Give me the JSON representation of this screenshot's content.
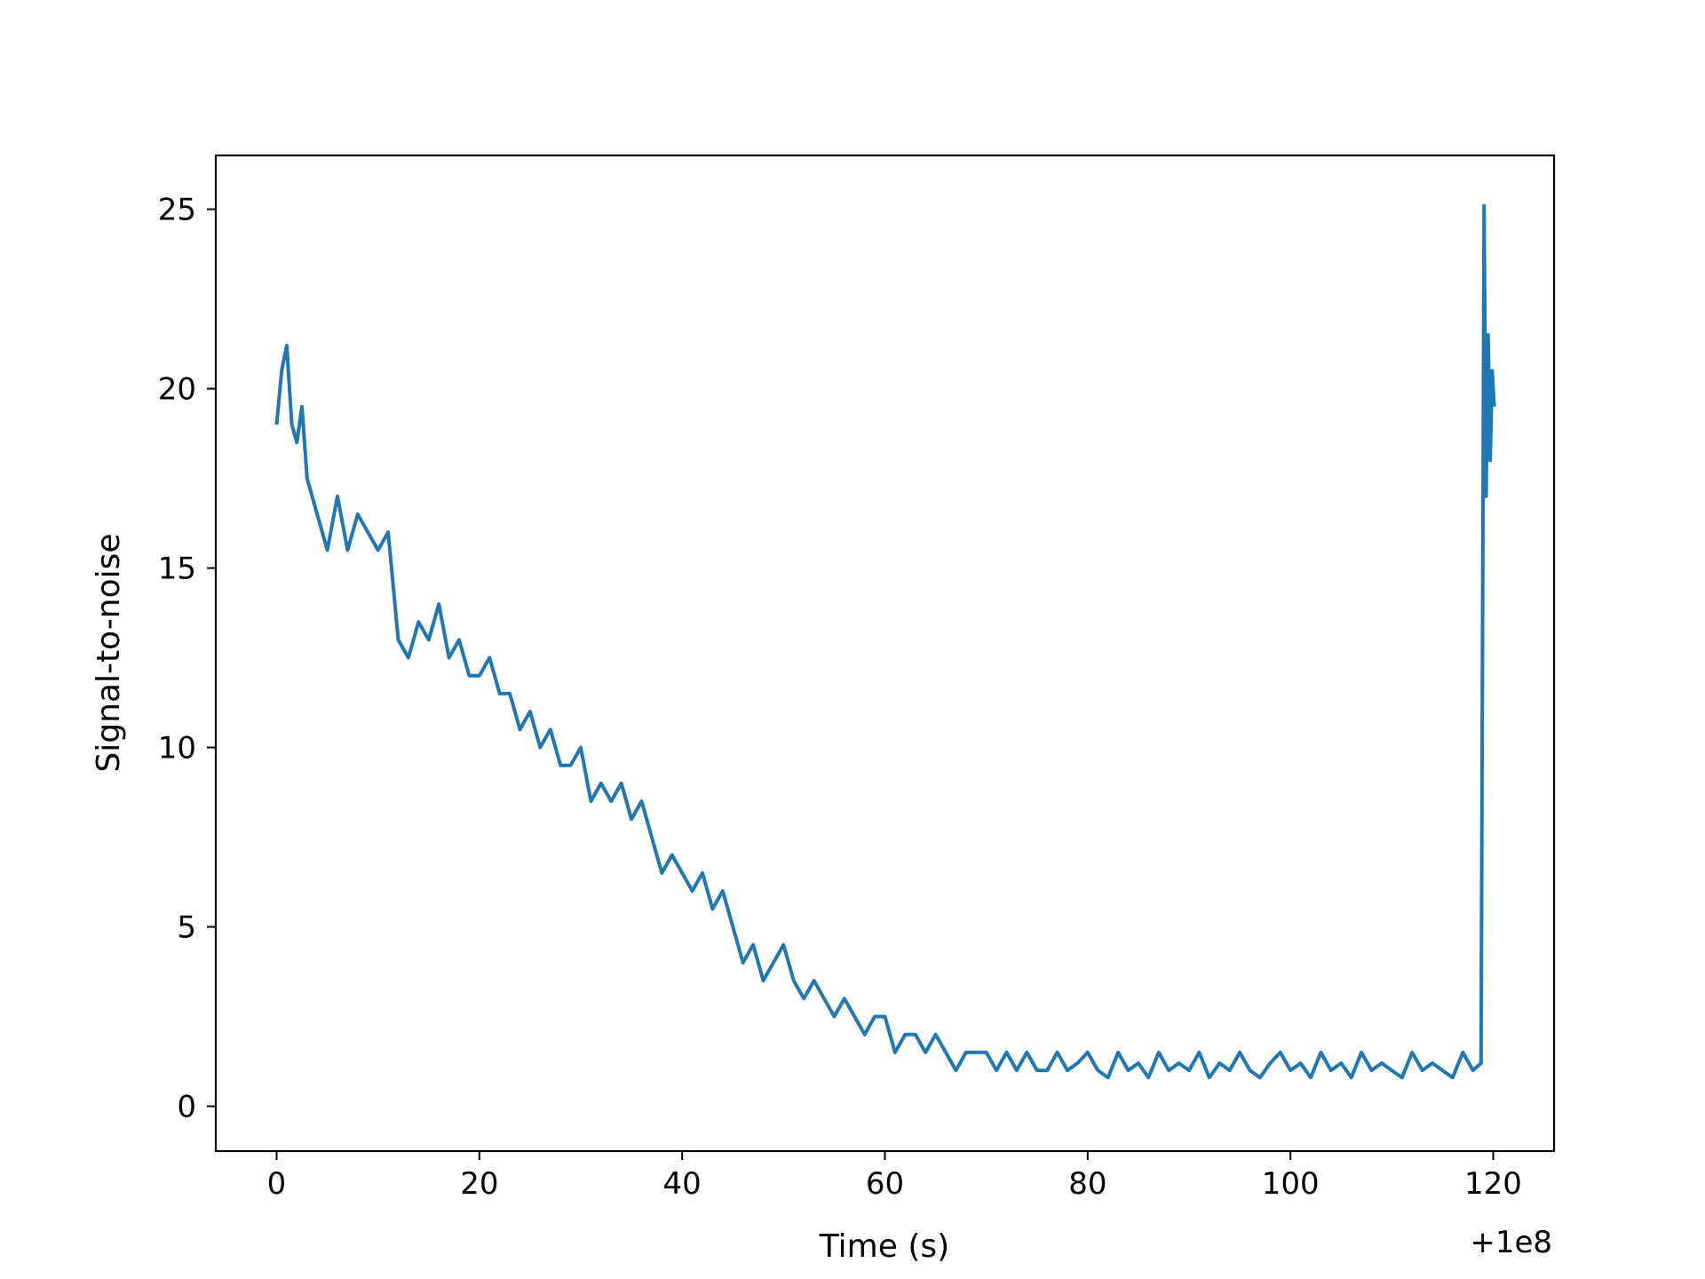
{
  "chart_data": {
    "type": "line",
    "title": "",
    "xlabel": "Time (s)",
    "ylabel": "Signal-to-noise",
    "x_offset_label": "+1e8",
    "xlim": [
      -6.0,
      126.0
    ],
    "ylim": [
      -1.25,
      26.5
    ],
    "x_ticks": [
      0,
      20,
      40,
      60,
      80,
      100,
      120
    ],
    "y_ticks": [
      0,
      5,
      10,
      15,
      20,
      25
    ],
    "grid": false,
    "legend": "none",
    "line_color": "#1f77b4",
    "series": [
      {
        "x": [
          0,
          0.5,
          1,
          1.5,
          2,
          2.5,
          3,
          4,
          5,
          6,
          7,
          8,
          9,
          10,
          11,
          12,
          13,
          14,
          15,
          16,
          17,
          18,
          19,
          20,
          21,
          22,
          23,
          24,
          25,
          26,
          27,
          28,
          29,
          30,
          31,
          32,
          33,
          34,
          35,
          36,
          37,
          38,
          39,
          40,
          41,
          42,
          43,
          44,
          45,
          46,
          47,
          48,
          49,
          50,
          51,
          52,
          53,
          54,
          55,
          56,
          57,
          58,
          59,
          60,
          61,
          62,
          63,
          64,
          65,
          66,
          67,
          68,
          69,
          70,
          71,
          72,
          73,
          74,
          75,
          76,
          77,
          78,
          79,
          80,
          81,
          82,
          83,
          84,
          85,
          86,
          87,
          88,
          89,
          90,
          91,
          92,
          93,
          94,
          95,
          96,
          97,
          98,
          99,
          100,
          101,
          102,
          103,
          104,
          105,
          106,
          107,
          108,
          109,
          110,
          111,
          112,
          113,
          114,
          115,
          116,
          117,
          118,
          118.8,
          119.1,
          119.3,
          119.5,
          119.7,
          119.9,
          120.1
        ],
        "y": [
          19.0,
          20.5,
          21.2,
          19.0,
          18.5,
          19.5,
          17.5,
          16.5,
          15.5,
          17.0,
          15.5,
          16.5,
          16.0,
          15.5,
          16.0,
          13.0,
          12.5,
          13.5,
          13.0,
          14.0,
          12.5,
          13.0,
          12.0,
          12.0,
          12.5,
          11.5,
          11.5,
          10.5,
          11.0,
          10.0,
          10.5,
          9.5,
          9.5,
          10.0,
          8.5,
          9.0,
          8.5,
          9.0,
          8.0,
          8.5,
          7.5,
          6.5,
          7.0,
          6.5,
          6.0,
          6.5,
          5.5,
          6.0,
          5.0,
          4.0,
          4.5,
          3.5,
          4.0,
          4.5,
          3.5,
          3.0,
          3.5,
          3.0,
          2.5,
          3.0,
          2.5,
          2.0,
          2.5,
          2.5,
          1.5,
          2.0,
          2.0,
          1.5,
          2.0,
          1.5,
          1.0,
          1.5,
          1.5,
          1.5,
          1.0,
          1.5,
          1.0,
          1.5,
          1.0,
          1.0,
          1.5,
          1.0,
          1.2,
          1.5,
          1.0,
          0.8,
          1.5,
          1.0,
          1.2,
          0.8,
          1.5,
          1.0,
          1.2,
          1.0,
          1.5,
          0.8,
          1.2,
          1.0,
          1.5,
          1.0,
          0.8,
          1.2,
          1.5,
          1.0,
          1.2,
          0.8,
          1.5,
          1.0,
          1.2,
          0.8,
          1.5,
          1.0,
          1.2,
          1.0,
          0.8,
          1.5,
          1.0,
          1.2,
          1.0,
          0.8,
          1.5,
          1.0,
          1.2,
          25.1,
          17.0,
          21.5,
          18.0,
          20.5,
          19.5
        ]
      }
    ]
  }
}
